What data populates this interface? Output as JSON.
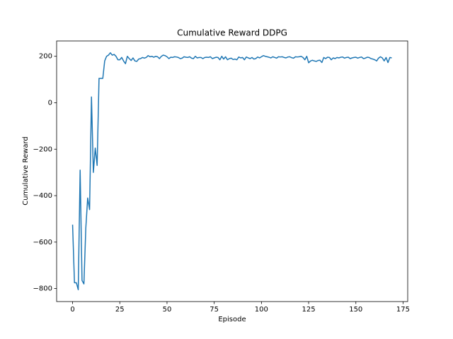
{
  "chart_data": {
    "type": "line",
    "title": "Cumulative Reward DDPG",
    "xlabel": "Episode",
    "ylabel": "Cumulative Reward",
    "color": "#1f77b4",
    "x": [
      0,
      1,
      2,
      3,
      4,
      5,
      6,
      7,
      8,
      9,
      10,
      11,
      12,
      13,
      14,
      15,
      16,
      17,
      18,
      19,
      20,
      21,
      22,
      23,
      24,
      25,
      26,
      27,
      28,
      29,
      30,
      31,
      32,
      33,
      34,
      35,
      36,
      37,
      38,
      39,
      40,
      41,
      42,
      43,
      44,
      45,
      46,
      47,
      48,
      49,
      50,
      51,
      52,
      53,
      54,
      55,
      56,
      57,
      58,
      59,
      60,
      61,
      62,
      63,
      64,
      65,
      66,
      67,
      68,
      69,
      70,
      71,
      72,
      73,
      74,
      75,
      76,
      77,
      78,
      79,
      80,
      81,
      82,
      83,
      84,
      85,
      86,
      87,
      88,
      89,
      90,
      91,
      92,
      93,
      94,
      95,
      96,
      97,
      98,
      99,
      100,
      101,
      102,
      103,
      104,
      105,
      106,
      107,
      108,
      109,
      110,
      111,
      112,
      113,
      114,
      115,
      116,
      117,
      118,
      119,
      120,
      121,
      122,
      123,
      124,
      125,
      126,
      127,
      128,
      129,
      130,
      131,
      132,
      133,
      134,
      135,
      136,
      137,
      138,
      139,
      140,
      141,
      142,
      143,
      144,
      145,
      146,
      147,
      148,
      149,
      150,
      151,
      152,
      153,
      154,
      155,
      156,
      157,
      158,
      159,
      160,
      161,
      162,
      163,
      164,
      165,
      166,
      167,
      168,
      169
    ],
    "values": [
      -525,
      -775,
      -775,
      -805,
      -290,
      -765,
      -780,
      -540,
      -410,
      -460,
      25,
      -300,
      -195,
      -270,
      105,
      105,
      105,
      180,
      200,
      205,
      215,
      205,
      208,
      200,
      185,
      185,
      195,
      180,
      168,
      200,
      190,
      182,
      193,
      180,
      178,
      188,
      190,
      195,
      192,
      195,
      203,
      198,
      200,
      196,
      200,
      198,
      190,
      200,
      205,
      203,
      198,
      190,
      196,
      195,
      198,
      197,
      195,
      190,
      192,
      198,
      196,
      195,
      198,
      192,
      190,
      200,
      193,
      195,
      195,
      190,
      195,
      196,
      195,
      198,
      190,
      193,
      196,
      195,
      185,
      200,
      188,
      198,
      185,
      190,
      192,
      186,
      188,
      185,
      197,
      193,
      195,
      185,
      197,
      193,
      190,
      195,
      188,
      190,
      197,
      193,
      198,
      203,
      200,
      198,
      196,
      193,
      198,
      195,
      192,
      198,
      197,
      198,
      195,
      193,
      197,
      198,
      194,
      192,
      198,
      197,
      198,
      200,
      195,
      185,
      200,
      172,
      180,
      183,
      180,
      178,
      182,
      183,
      173,
      195,
      190,
      196,
      195,
      185,
      193,
      190,
      195,
      193,
      196,
      197,
      192,
      195,
      196,
      190,
      193,
      195,
      196,
      192,
      195,
      197,
      190,
      192,
      196,
      195,
      190,
      188,
      185,
      180,
      192,
      198,
      193,
      180,
      195,
      173,
      195,
      193
    ],
    "xlim": [
      -8.45,
      177.45
    ],
    "ylim": [
      -856,
      266
    ],
    "xticks": [
      0,
      25,
      50,
      75,
      100,
      125,
      150,
      175
    ],
    "yticks": [
      {
        "value": -800,
        "label": "−800"
      },
      {
        "value": -600,
        "label": "−600"
      },
      {
        "value": -400,
        "label": "−400"
      },
      {
        "value": -200,
        "label": "−200"
      },
      0,
      200
    ],
    "grid": false
  }
}
